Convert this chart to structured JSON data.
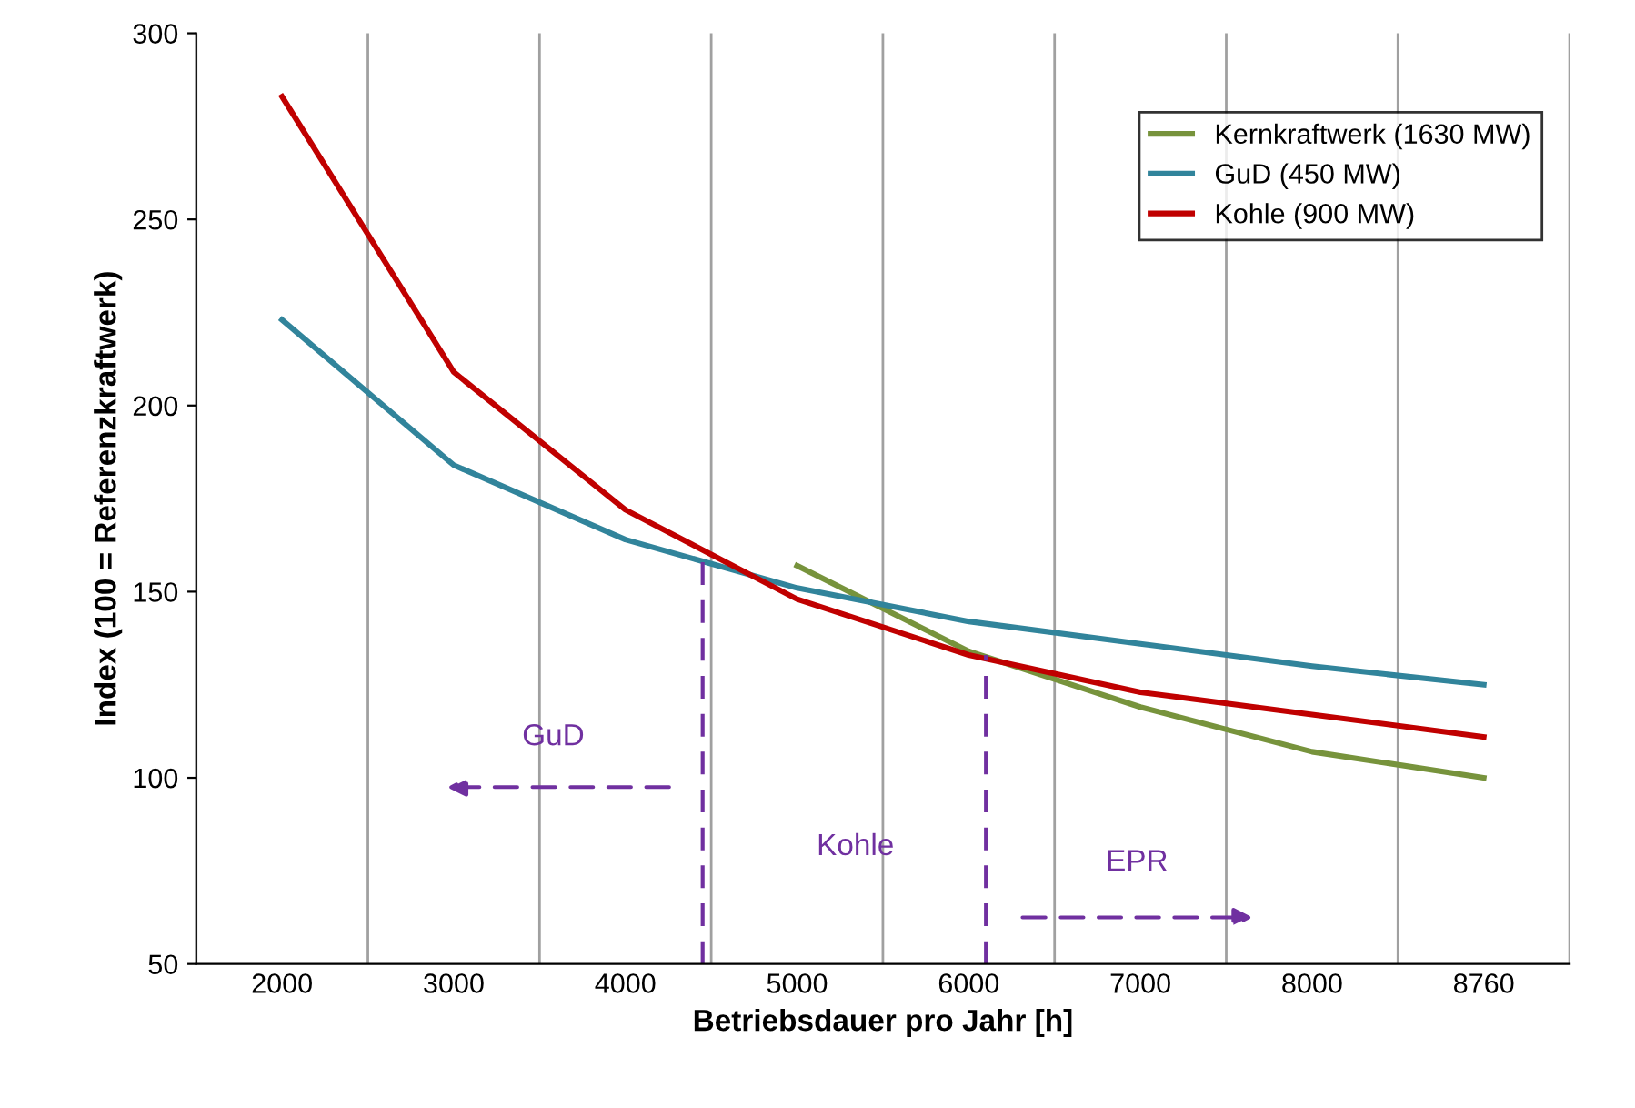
{
  "chart_data": {
    "type": "line",
    "xlabel": "Betriebsdauer pro Jahr [h]",
    "ylabel": "Index (100 = Referenzkraftwerk)",
    "categories": [
      "2000",
      "3000",
      "4000",
      "5000",
      "6000",
      "7000",
      "8000",
      "8760"
    ],
    "series": [
      {
        "name": "Kernkraftwerk (1630 MW)",
        "color": "#77933c",
        "values": [
          null,
          null,
          null,
          157,
          134,
          119,
          107,
          100
        ]
      },
      {
        "name": "GuD (450 MW)",
        "color": "#31849b",
        "values": [
          223,
          184,
          164,
          151,
          142,
          136,
          130,
          125
        ]
      },
      {
        "name": "Kohle (900 MW)",
        "color": "#c00000",
        "values": [
          283,
          209,
          172,
          148,
          133,
          123,
          117,
          111
        ]
      }
    ],
    "ylim": [
      50,
      300
    ],
    "yticks": [
      50,
      100,
      150,
      200,
      250,
      300
    ],
    "grid": "x",
    "legend": "top right",
    "marker": "none",
    "line_style": "solid",
    "annotations": [
      "GuD",
      "Kohle",
      "EPR"
    ]
  }
}
